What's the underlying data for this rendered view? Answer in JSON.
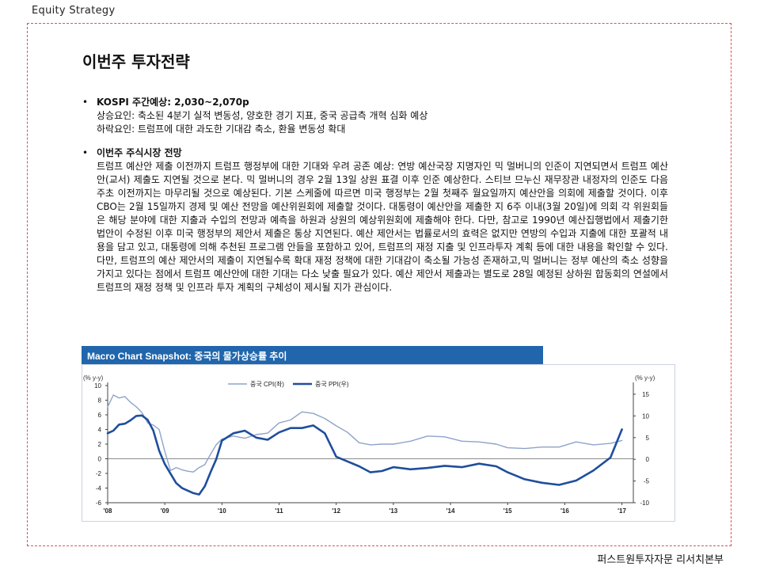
{
  "header": {
    "label": "Equity  Strategy"
  },
  "page_title": "이번주 투자전략",
  "section1": {
    "bullet": "•",
    "heading": "KOSPI 주간예상: 2,030~2,070p",
    "lines": [
      "상승요인: 축소된 4분기 실적 변동성, 양호한 경기 지표, 중국 공급측 개혁 심화 예상",
      "하락요인: 트럼프에 대한 과도한 기대감 축소, 환율 변동성 확대"
    ]
  },
  "section2": {
    "bullet": "•",
    "heading": "이번주 주식시장 전망",
    "body": "트럼프 예산안 제출 이전까지 트럼프 행정부에 대한 기대와 우려 공존 예상: 연방 예산국장 지명자인 믹 멀버니의 인준이 지연되면서 트럼프 예산안(교서) 제출도 지연될 것으로 본다. 믹 멀버니의 경우 2월 13일 상원 표결 이후 인준 예상한다. 스티브 므누신 재무장관 내정자의 인준도 다음주초 이전까지는 마무리될 것으로 예상된다. 기본 스케줄에 따르면 미국 행정부는 2월 첫째주 월요일까지 예산안을 의회에 제출할 것이다. 이후 CBO는 2월 15일까지 경제 및 예산 전망을 예산위원회에 제출할 것이다. 대통령이 예산안을 제출한 지 6주 이내(3월 20일)에 의회 각 위원회들은 해당 분야에 대한 지출과 수입의 전망과 예측을 하원과 상원의 예상위원회에 제출해야 한다. 다만, 참고로 1990년 예산집행법에서 제출기한 법안이 수정된 이후 미국 행정부의 제안서 제출은 통상 지연된다. 예산 제안서는 법률로서의 효력은 없지만 연방의 수입과 지출에 대한 포괄적 내용을 담고 있고, 대통령에 의해 추천된 프로그램 안들을 포함하고 있어, 트럼프의 재정 지출 및 인프라투자 계획 등에 대한 내용을 확인할 수 있다. 다만, 트럼프의 예산 제안서의 제출이 지연될수록 확대 재정 정책에 대한 기대감이 축소될 가능성 존재하고,믹 멀버니는 정부 예산의 축소 성향을 가지고 있다는 점에서 트럼프 예산안에 대한 기대는 다소 낮출 필요가 있다. 예산 제안서 제출과는 별도로 28일 예정된 상하원 합동회의 연설에서 트럼프의 재정 정책 및 인프라 투자 계획의 구체성이 제시될 지가 관심이다."
  },
  "chart_banner": "Macro Chart Snapshot: 중국의 물가상승률 추이",
  "chart_data": {
    "type": "line",
    "title": "Macro Chart Snapshot: 중국의 물가상승률 추이",
    "left_unit": "(% y-y)",
    "right_unit": "(% y-y)",
    "ylim_left": [
      -6,
      10
    ],
    "ylim_right": [
      -10,
      17
    ],
    "yticks_left": [
      "10",
      "8",
      "6",
      "4",
      "2",
      "0",
      "-2",
      "-4",
      "-6"
    ],
    "yticks_right": [
      "15",
      "10",
      "5",
      "0",
      "-5",
      "-10"
    ],
    "x_ticks": [
      "'08",
      "'09",
      "'10",
      "'11",
      "'12",
      "'13",
      "'14",
      "'15",
      "'16",
      "'17"
    ],
    "legend": [
      "중국 CPI(좌)",
      "중국 PPI(우)"
    ],
    "series": [
      {
        "name": "중국 CPI(좌)",
        "axis": "left",
        "color": "#8fa3c9",
        "x": [
          2008.0,
          2008.1,
          2008.2,
          2008.3,
          2008.4,
          2008.5,
          2008.6,
          2008.7,
          2008.8,
          2008.9,
          2009.0,
          2009.1,
          2009.2,
          2009.3,
          2009.4,
          2009.5,
          2009.6,
          2009.7,
          2009.8,
          2009.9,
          2010.0,
          2010.2,
          2010.4,
          2010.6,
          2010.8,
          2011.0,
          2011.2,
          2011.4,
          2011.6,
          2011.8,
          2012.0,
          2012.2,
          2012.4,
          2012.6,
          2012.8,
          2013.0,
          2013.3,
          2013.6,
          2013.9,
          2014.2,
          2014.5,
          2014.8,
          2015.0,
          2015.3,
          2015.6,
          2015.9,
          2016.2,
          2016.5,
          2016.8,
          2017.0
        ],
        "values": [
          7.1,
          8.7,
          8.3,
          8.5,
          7.7,
          7.1,
          6.3,
          4.9,
          4.6,
          4.0,
          1.0,
          -1.6,
          -1.2,
          -1.5,
          -1.7,
          -1.8,
          -1.2,
          -0.8,
          0.6,
          1.9,
          2.7,
          3.1,
          2.8,
          3.3,
          3.5,
          4.9,
          5.3,
          6.4,
          6.2,
          5.5,
          4.5,
          3.6,
          2.2,
          1.9,
          2.0,
          2.0,
          2.4,
          3.1,
          3.0,
          2.4,
          2.3,
          2.0,
          1.5,
          1.4,
          1.6,
          1.6,
          2.3,
          1.9,
          2.1,
          2.5
        ]
      },
      {
        "name": "중국 PPI(우)",
        "axis": "right",
        "color": "#1f4e9c",
        "x": [
          2008.0,
          2008.1,
          2008.2,
          2008.3,
          2008.4,
          2008.5,
          2008.6,
          2008.7,
          2008.8,
          2008.9,
          2009.0,
          2009.1,
          2009.2,
          2009.3,
          2009.4,
          2009.5,
          2009.6,
          2009.7,
          2009.8,
          2009.9,
          2010.0,
          2010.2,
          2010.4,
          2010.6,
          2010.8,
          2011.0,
          2011.2,
          2011.4,
          2011.6,
          2011.8,
          2012.0,
          2012.2,
          2012.4,
          2012.6,
          2012.8,
          2013.0,
          2013.3,
          2013.6,
          2013.9,
          2014.2,
          2014.5,
          2014.8,
          2015.0,
          2015.3,
          2015.6,
          2015.9,
          2016.2,
          2016.5,
          2016.8,
          2017.0
        ],
        "values": [
          6.0,
          6.6,
          8.0,
          8.2,
          9.0,
          10.0,
          10.1,
          9.1,
          6.6,
          2.0,
          -1.1,
          -3.3,
          -5.5,
          -6.6,
          -7.2,
          -7.8,
          -8.1,
          -6.2,
          -3.0,
          0.0,
          4.3,
          6.0,
          6.6,
          5.0,
          4.5,
          6.2,
          7.2,
          7.2,
          7.8,
          6.0,
          0.6,
          -0.5,
          -1.6,
          -3.0,
          -2.7,
          -1.8,
          -2.3,
          -2.0,
          -1.5,
          -1.8,
          -1.0,
          -1.6,
          -3.0,
          -4.6,
          -5.4,
          -5.9,
          -4.9,
          -2.6,
          0.4,
          6.9
        ]
      }
    ]
  },
  "footer": "퍼스트원투자자문 리서치본부"
}
